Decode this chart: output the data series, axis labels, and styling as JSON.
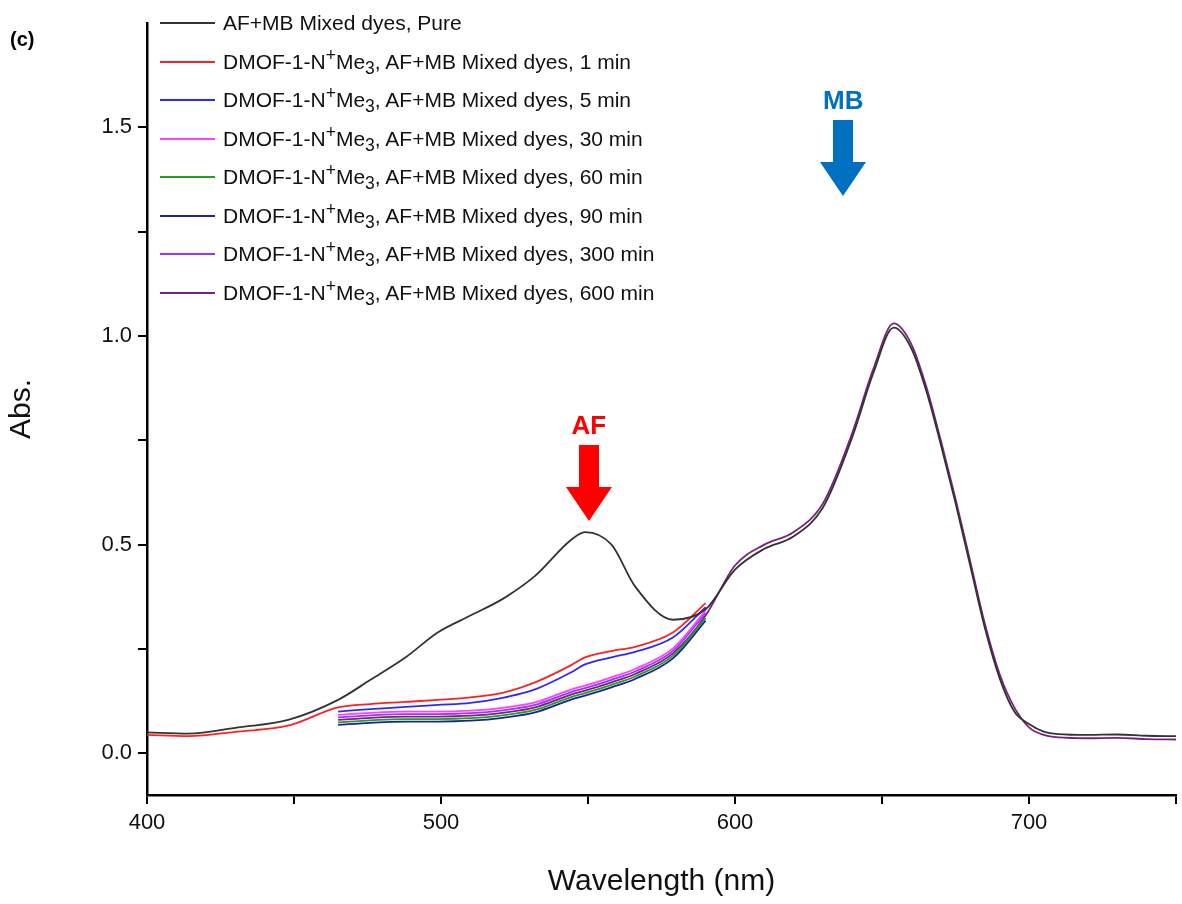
{
  "chart_data": {
    "type": "line",
    "xlabel": "Wavelength (nm)",
    "ylabel": "Abs.",
    "x": [
      400,
      414,
      431,
      448,
      465,
      476,
      488,
      499,
      510,
      521,
      532,
      544,
      549,
      558,
      566,
      579,
      590,
      600,
      610,
      620,
      630,
      640,
      647,
      654,
      660,
      665,
      670,
      675,
      680,
      685,
      690,
      695,
      700,
      705,
      710,
      720,
      730,
      740,
      750
    ],
    "series": [
      {
        "name": "AF+MB Mixed dyes, Pure",
        "color": "#333333",
        "values": [
          0.05,
          0.047,
          0.062,
          0.08,
          0.128,
          0.176,
          0.23,
          0.29,
          0.33,
          0.37,
          0.425,
          0.51,
          0.53,
          0.5,
          0.4,
          0.32,
          0.345,
          0.44,
          0.49,
          0.52,
          0.59,
          0.76,
          0.91,
          1.02,
          0.97,
          0.87,
          0.74,
          0.6,
          0.45,
          0.3,
          0.18,
          0.1,
          0.07,
          0.052,
          0.046,
          0.044,
          0.045,
          0.042,
          0.041
        ]
      },
      {
        "name": "DMOF-1-N$^{+}$Me$_{3}$, AF+MB Mixed dyes, 1 min",
        "color": "#ff2020",
        "values": [
          0.044,
          0.041,
          0.052,
          0.066,
          0.11,
          0.118,
          0.123,
          0.128,
          0.134,
          0.145,
          0.17,
          0.21,
          0.23,
          0.245,
          0.255,
          0.29,
          0.36,
          null,
          null,
          null,
          null,
          null,
          null,
          null,
          null,
          null,
          null,
          null,
          null,
          null,
          null,
          null,
          null,
          null,
          null,
          null,
          null,
          null,
          null
        ]
      },
      {
        "name": "DMOF-1-N$^{+}$Me$_{3}$, AF+MB Mixed dyes, 5 min",
        "color": "#2a2aff",
        "values": [
          null,
          null,
          null,
          null,
          0.1,
          0.106,
          0.111,
          0.116,
          0.121,
          0.133,
          0.153,
          0.193,
          0.213,
          0.23,
          0.243,
          0.278,
          0.35,
          null,
          null,
          null,
          null,
          null,
          null,
          null,
          null,
          null,
          null,
          null,
          null,
          null,
          null,
          null,
          null,
          null,
          null,
          null,
          null,
          null,
          null
        ]
      },
      {
        "name": "DMOF-1-N$^{+}$Me$_{3}$, AF+MB Mixed dyes, 30 min",
        "color": "#ff40ff",
        "values": [
          null,
          null,
          null,
          null,
          0.092,
          0.097,
          0.1,
          0.1,
          0.102,
          0.109,
          0.122,
          0.152,
          0.162,
          0.182,
          0.202,
          0.252,
          0.342,
          null,
          null,
          null,
          null,
          null,
          null,
          null,
          null,
          null,
          null,
          null,
          null,
          null,
          null,
          null,
          null,
          null,
          null,
          null,
          null,
          null,
          null
        ]
      },
      {
        "name": "DMOF-1-N$^{+}$Me$_{3}$, AF+MB Mixed dyes, 60 min",
        "color": "#20a020",
        "values": [
          null,
          null,
          null,
          null,
          0.074,
          0.079,
          0.082,
          0.082,
          0.084,
          0.091,
          0.104,
          0.134,
          0.144,
          0.164,
          0.184,
          0.234,
          0.324,
          null,
          null,
          null,
          null,
          null,
          null,
          null,
          null,
          null,
          null,
          null,
          null,
          null,
          null,
          null,
          null,
          null,
          null,
          null,
          null,
          null,
          null
        ]
      },
      {
        "name": "DMOF-1-N$^{+}$Me$_{3}$, AF+MB Mixed dyes, 90 min",
        "color": "#202090",
        "values": [
          null,
          null,
          null,
          null,
          0.068,
          0.073,
          0.076,
          0.076,
          0.078,
          0.085,
          0.098,
          0.128,
          0.138,
          0.158,
          0.178,
          0.228,
          0.318,
          null,
          null,
          null,
          null,
          null,
          null,
          null,
          null,
          null,
          null,
          null,
          null,
          null,
          null,
          null,
          null,
          null,
          null,
          null,
          null,
          null,
          null
        ]
      },
      {
        "name": "DMOF-1-N$^{+}$Me$_{3}$, AF+MB Mixed dyes, 300 min",
        "color": "#9933ff",
        "values": [
          null,
          null,
          null,
          null,
          0.086,
          0.091,
          0.094,
          0.094,
          0.096,
          0.103,
          0.116,
          0.146,
          0.156,
          0.176,
          0.196,
          0.246,
          0.336,
          null,
          null,
          null,
          null,
          null,
          null,
          null,
          null,
          null,
          null,
          null,
          null,
          null,
          null,
          null,
          null,
          null,
          null,
          null,
          null,
          null,
          null
        ]
      },
      {
        "name": "DMOF-1-N$^{+}$Me$_{3}$, AF+MB Mixed dyes, 600 min",
        "color": "#7b2080",
        "values": [
          null,
          null,
          null,
          null,
          0.08,
          0.085,
          0.088,
          0.088,
          0.09,
          0.097,
          0.11,
          0.14,
          0.15,
          0.17,
          0.19,
          0.24,
          0.33,
          0.45,
          0.5,
          0.53,
          0.6,
          0.77,
          0.92,
          1.03,
          0.98,
          0.88,
          0.75,
          0.61,
          0.46,
          0.31,
          0.19,
          0.11,
          0.062,
          0.044,
          0.038,
          0.036,
          0.037,
          0.034,
          0.033
        ]
      }
    ],
    "xlim": [
      400,
      750
    ],
    "xticks": [
      400,
      {
        "value": 450,
        "label": null
      },
      500,
      {
        "value": 550,
        "label": null
      },
      600,
      {
        "value": 650,
        "label": null
      },
      700,
      {
        "value": 750,
        "label": null
      }
    ],
    "ylim": [
      -0.1,
      1.75
    ],
    "yticks": [
      {
        "value": 0,
        "label": "0.0"
      },
      {
        "value": 0.25,
        "label": null
      },
      {
        "value": 0.5,
        "label": "0.5"
      },
      {
        "value": 0.75,
        "label": null
      },
      {
        "value": 1,
        "label": "1.0"
      },
      {
        "value": 1.25,
        "label": null
      },
      {
        "value": 1.5,
        "label": "1.5"
      }
    ],
    "grid": false,
    "legend": "top left",
    "marker": "none",
    "line_style": "solid",
    "annotations": [
      "(c)",
      "AF",
      "MB"
    ]
  }
}
